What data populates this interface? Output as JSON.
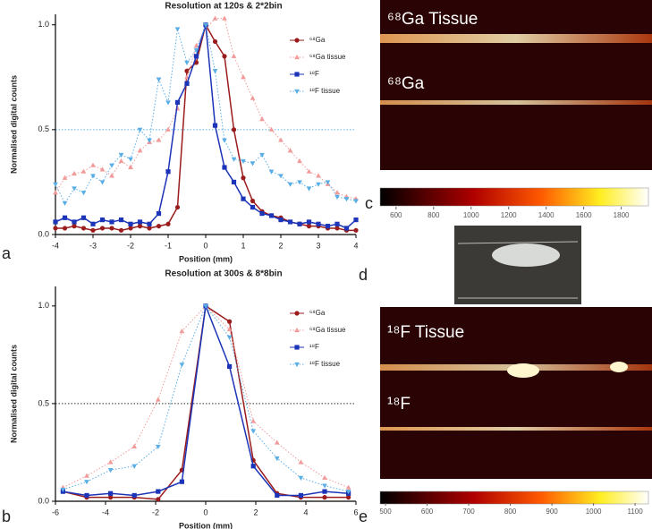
{
  "chart_data": [
    {
      "type": "line",
      "title": "Resolution at 120s & 2*2bin",
      "x_label": "Position (mm)",
      "y_label": "Normalised digital counts",
      "x": [
        -4,
        -3.75,
        -3.5,
        -3.25,
        -3,
        -2.75,
        -2.5,
        -2.25,
        -2,
        -1.75,
        -1.5,
        -1.25,
        -1,
        -0.75,
        -0.5,
        -0.25,
        0,
        0.25,
        0.5,
        0.75,
        1,
        1.25,
        1.5,
        1.75,
        2,
        2.25,
        2.5,
        2.75,
        3,
        3.25,
        3.5,
        3.75,
        4
      ],
      "series": [
        {
          "name": "⁶⁸Ga",
          "color": "#9b1c1c",
          "marker": "circle",
          "dotted": false,
          "values": [
            0.03,
            0.03,
            0.04,
            0.03,
            0.02,
            0.03,
            0.03,
            0.02,
            0.03,
            0.04,
            0.03,
            0.04,
            0.05,
            0.13,
            0.78,
            0.82,
            1.0,
            0.92,
            0.85,
            0.5,
            0.27,
            0.16,
            0.11,
            0.09,
            0.08,
            0.06,
            0.05,
            0.04,
            0.04,
            0.03,
            0.03,
            0.02,
            0.02
          ]
        },
        {
          "name": "⁶⁸Ga tissue",
          "color": "#f29a9a",
          "marker": "triangle-up",
          "dotted": true,
          "values": [
            0.2,
            0.27,
            0.29,
            0.3,
            0.33,
            0.31,
            0.28,
            0.35,
            0.32,
            0.4,
            0.44,
            0.45,
            0.5,
            0.6,
            0.75,
            0.9,
            0.98,
            1.03,
            1.03,
            0.85,
            0.75,
            0.65,
            0.55,
            0.5,
            0.45,
            0.4,
            0.35,
            0.3,
            0.28,
            0.24,
            0.2,
            0.18,
            0.17
          ]
        },
        {
          "name": "¹⁸F",
          "color": "#1c34b8",
          "marker": "square",
          "dotted": false,
          "values": [
            0.06,
            0.08,
            0.06,
            0.08,
            0.05,
            0.07,
            0.06,
            0.07,
            0.05,
            0.06,
            0.05,
            0.1,
            0.3,
            0.63,
            0.72,
            0.85,
            1.0,
            0.52,
            0.32,
            0.25,
            0.17,
            0.13,
            0.1,
            0.09,
            0.07,
            0.06,
            0.05,
            0.06,
            0.05,
            0.04,
            0.05,
            0.03,
            0.07
          ]
        },
        {
          "name": "¹⁸F tissue",
          "color": "#5aaee6",
          "marker": "triangle-down",
          "dotted": true,
          "values": [
            0.24,
            0.15,
            0.22,
            0.2,
            0.28,
            0.25,
            0.33,
            0.38,
            0.36,
            0.5,
            0.45,
            0.74,
            0.63,
            0.98,
            0.82,
            0.88,
            1.0,
            0.78,
            0.45,
            0.36,
            0.35,
            0.34,
            0.38,
            0.3,
            0.28,
            0.24,
            0.25,
            0.22,
            0.24,
            0.25,
            0.18,
            0.17,
            0.16
          ]
        }
      ],
      "xlim": [
        -4,
        4
      ],
      "xticks": [
        -4,
        -3,
        -2,
        -1,
        0,
        1,
        2,
        3,
        4
      ],
      "ylim": [
        0,
        1.05
      ],
      "yticks": [
        {
          "value": 0,
          "label": "0.0"
        },
        0.5,
        {
          "value": 1,
          "label": "1.0"
        }
      ],
      "reference_line": 0.5,
      "reference_color": "#5aaee6"
    },
    {
      "type": "line",
      "title": "Resolution at 300s & 8*8bin",
      "x_label": "Position (mm)",
      "y_label": "Normalised digital counts",
      "x": [
        -5.7,
        -4.75,
        -3.8,
        -2.85,
        -1.9,
        -0.95,
        0,
        0.95,
        1.9,
        2.85,
        3.8,
        4.75,
        5.7
      ],
      "series": [
        {
          "name": "⁶⁸Ga",
          "color": "#9b1c1c",
          "marker": "circle",
          "dotted": false,
          "values": [
            0.05,
            0.02,
            0.02,
            0.02,
            0.01,
            0.16,
            1.0,
            0.92,
            0.21,
            0.04,
            0.02,
            0.02,
            0.02
          ]
        },
        {
          "name": "⁶⁸Ga tissue",
          "color": "#f29a9a",
          "marker": "triangle-up",
          "dotted": true,
          "values": [
            0.07,
            0.13,
            0.2,
            0.28,
            0.52,
            0.87,
            1.0,
            0.88,
            0.41,
            0.3,
            0.2,
            0.12,
            0.07
          ]
        },
        {
          "name": "¹⁸F",
          "color": "#1c34b8",
          "marker": "square",
          "dotted": false,
          "values": [
            0.05,
            0.03,
            0.04,
            0.03,
            0.05,
            0.1,
            1.0,
            0.69,
            0.18,
            0.03,
            0.03,
            0.05,
            0.04
          ]
        },
        {
          "name": "¹⁸F tissue",
          "color": "#5aaee6",
          "marker": "triangle-down",
          "dotted": true,
          "values": [
            0.06,
            0.1,
            0.16,
            0.18,
            0.28,
            0.7,
            1.0,
            0.84,
            0.36,
            0.22,
            0.12,
            0.08,
            0.05
          ]
        }
      ],
      "xlim": [
        -6,
        6
      ],
      "xticks": [
        -6,
        -4,
        -2,
        0,
        2,
        4,
        6
      ],
      "ylim": [
        0,
        1.1
      ],
      "yticks": [
        {
          "value": 0,
          "label": "0.0"
        },
        0.5,
        {
          "value": 1,
          "label": "1.0"
        }
      ],
      "reference_line": 0.5,
      "reference_color": "#333333"
    }
  ],
  "panels": [
    "a",
    "b",
    "c",
    "d",
    "e"
  ],
  "image_labels": [
    "⁶⁸Ga Tissue",
    "⁶⁸Ga",
    "¹⁸F Tissue",
    "¹⁸F"
  ],
  "colorbars": [
    {
      "lim": [
        515,
        1945
      ],
      "ticks": [
        600,
        800,
        1000,
        1200,
        1400,
        1600,
        1800
      ]
    },
    {
      "lim": [
        487,
        1132
      ],
      "ticks": [
        500,
        600,
        700,
        800,
        900,
        1000,
        1100
      ]
    }
  ]
}
